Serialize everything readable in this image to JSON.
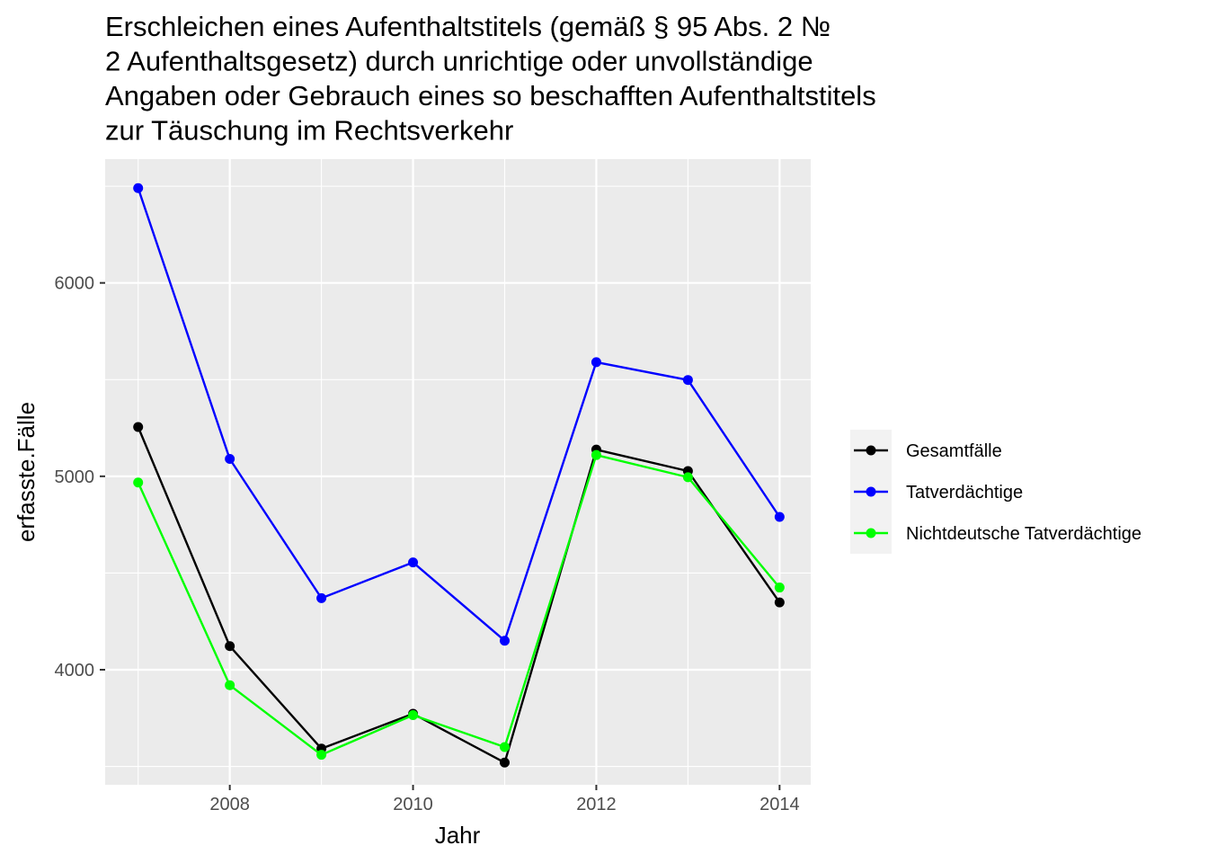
{
  "chart_data": {
    "type": "line",
    "title_lines": [
      "Erschleichen eines Aufenthaltstitels (gemäß § 95 Abs. 2 №",
      "2 Aufenthaltsgesetz) durch unrichtige oder unvollständige",
      "Angaben oder Gebrauch eines so beschafften Aufenthaltstitels",
      "zur Täuschung im Rechtsverkehr"
    ],
    "xlabel": "Jahr",
    "ylabel": "erfasste.Fälle",
    "x": [
      2007,
      2008,
      2009,
      2010,
      2011,
      2012,
      2013,
      2014
    ],
    "xlim": [
      2006.64,
      2014.34
    ],
    "ylim": [
      3405,
      6640
    ],
    "x_ticks": [
      2008,
      2010,
      2012,
      2014
    ],
    "y_ticks": [
      4000,
      5000,
      6000
    ],
    "grid": true,
    "legend_position": "right",
    "series": [
      {
        "name": "Gesamtfälle",
        "color": "#000000",
        "values": [
          5255,
          4122,
          3592,
          3772,
          3520,
          5138,
          5027,
          4348
        ]
      },
      {
        "name": "Tatverdächtige",
        "color": "#0000ff",
        "values": [
          6490,
          5090,
          4370,
          4555,
          4150,
          5590,
          5498,
          4790
        ]
      },
      {
        "name": "Nichtdeutsche Tatverdächtige",
        "color": "#00ff00",
        "values": [
          4968,
          3920,
          3560,
          3765,
          3600,
          5110,
          4995,
          4425
        ]
      }
    ]
  }
}
